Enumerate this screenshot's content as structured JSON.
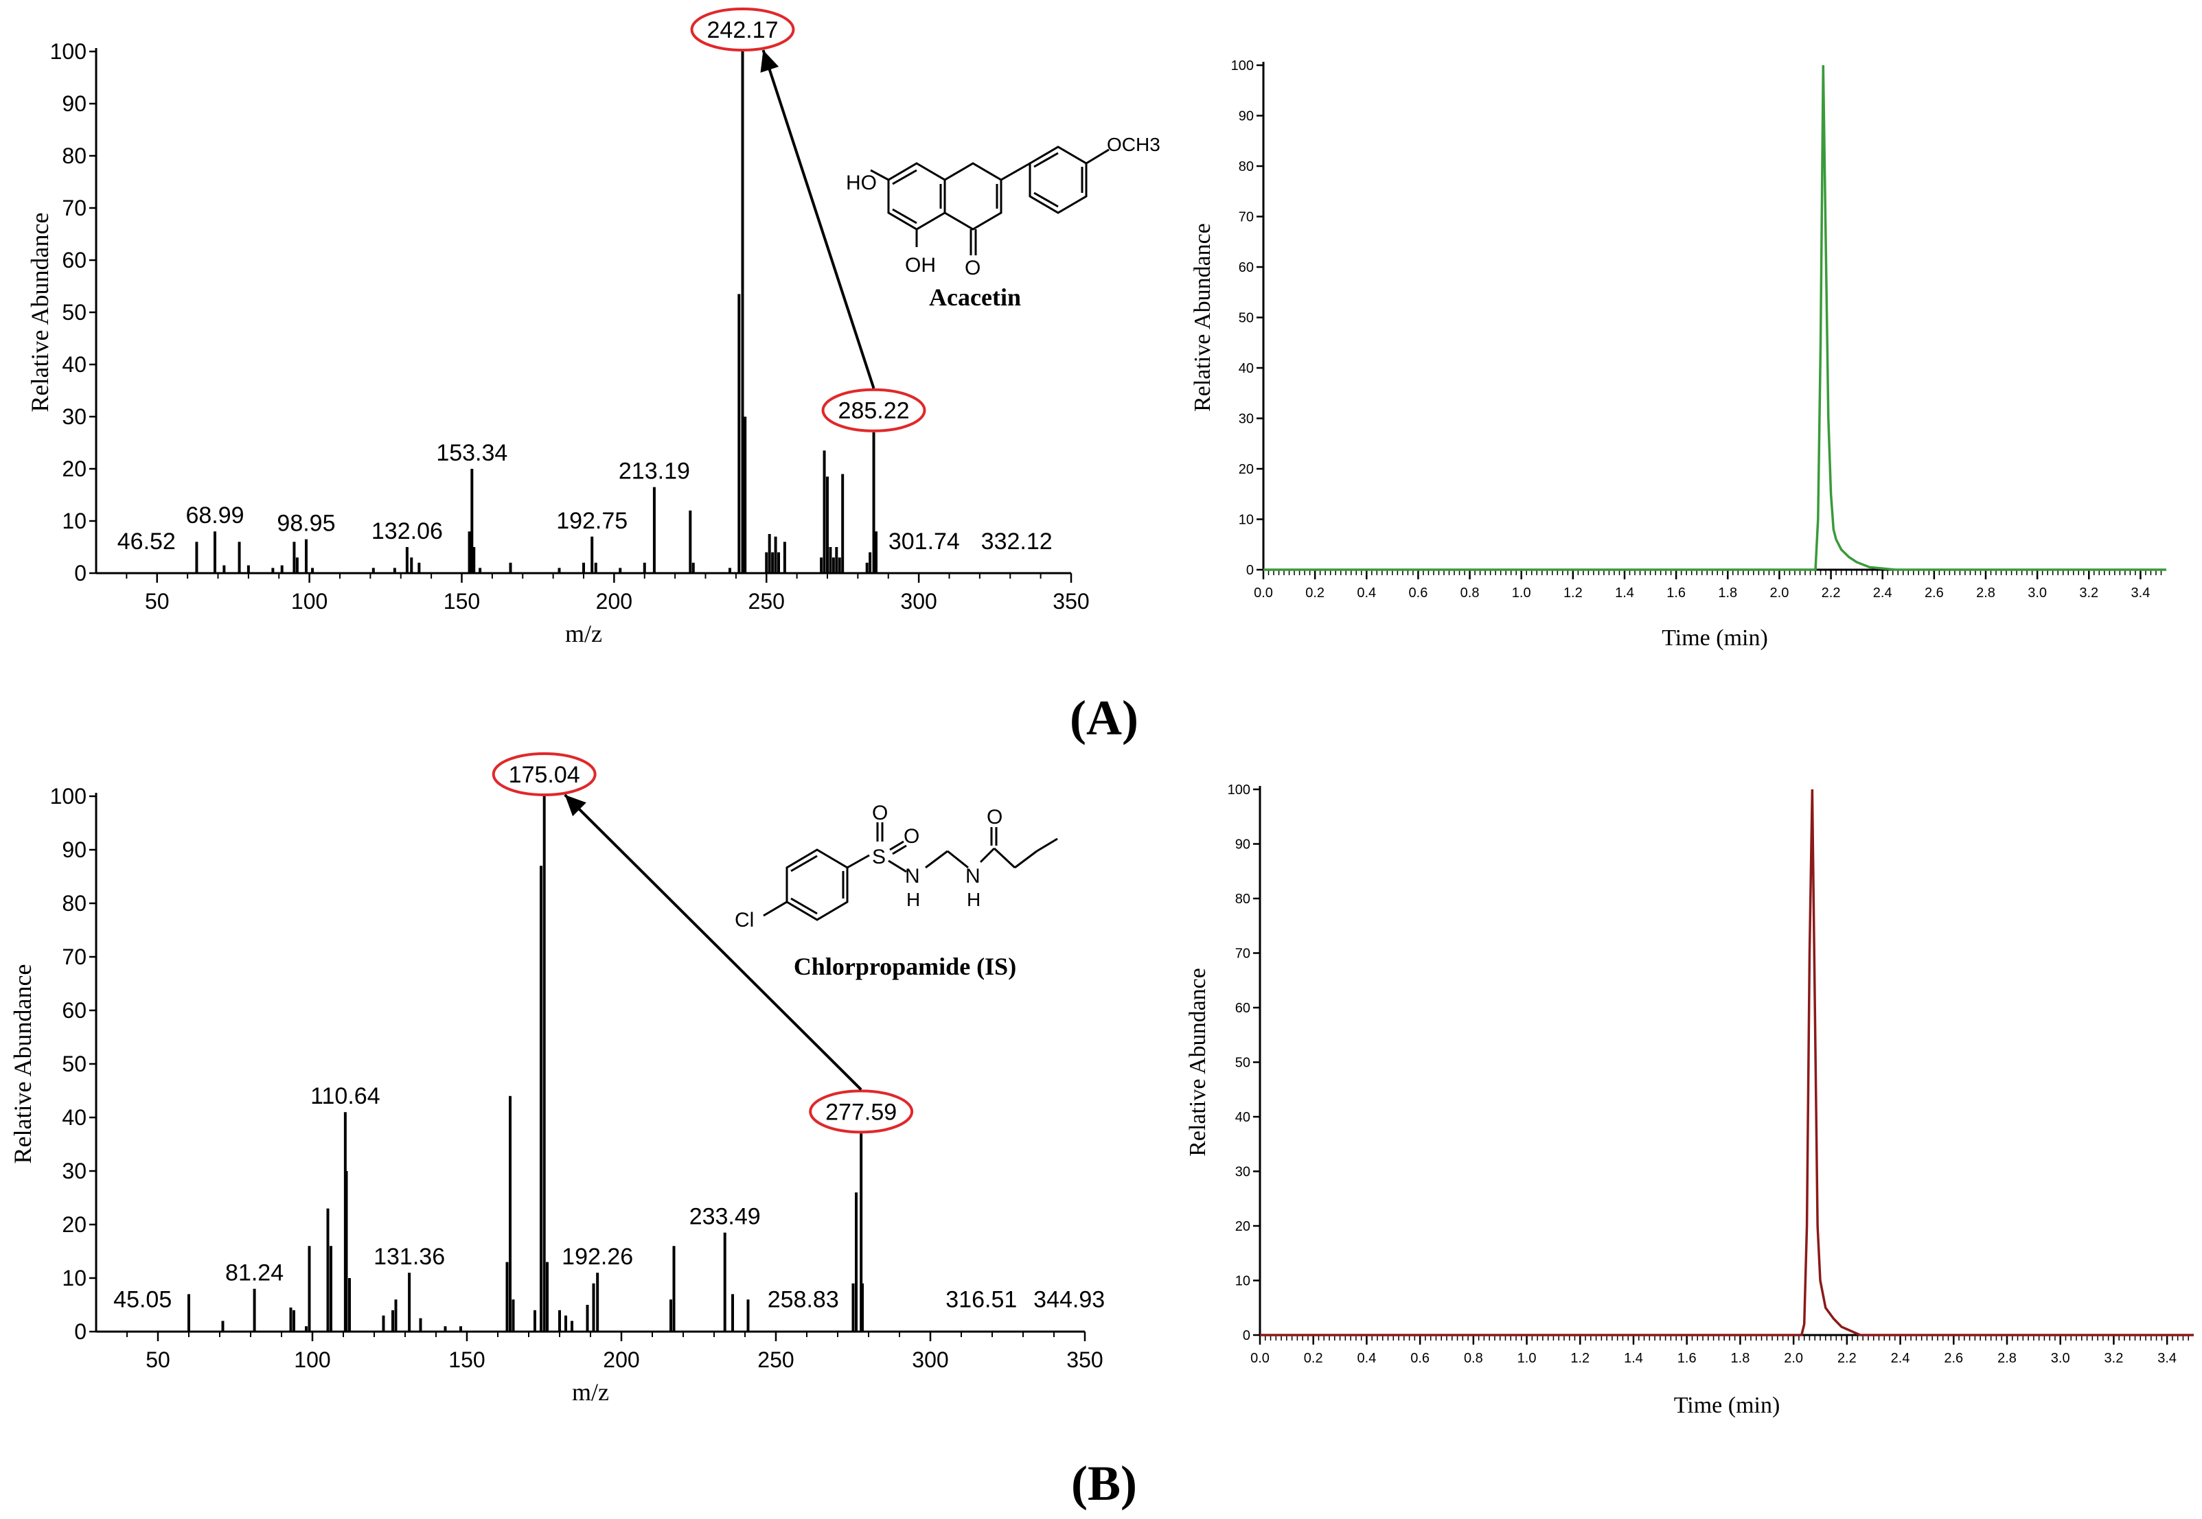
{
  "panel_labels": [
    "(A)",
    "(B)"
  ],
  "compound_names": [
    "Acacetin",
    "Chlorpropamide  (IS)"
  ],
  "structure_text": {
    "acacetin": {
      "ho": "HO",
      "oh": "OH",
      "o": "O",
      "och3": "OCH3"
    },
    "chlorpropamide": {
      "cl": "Cl",
      "s": "S",
      "o1": "O",
      "o2": "O",
      "n1": "N",
      "h1": "H",
      "n2": "N",
      "h2": "H",
      "o3": "O"
    }
  },
  "colors": {
    "spectrum": "#000000",
    "trace_A": "#3a9a3a",
    "trace_B": "#8b1a1a",
    "highlight": "#e0282a"
  },
  "chart_data": [
    {
      "id": "A-spectrum",
      "type": "bar",
      "xlabel": "m/z",
      "ylabel": "Relative Abundance",
      "xlim": [
        30,
        350
      ],
      "ylim": [
        0,
        100
      ],
      "xticks": [
        50,
        100,
        150,
        200,
        250,
        300,
        350
      ],
      "yticks": [
        0,
        10,
        20,
        30,
        40,
        50,
        60,
        70,
        80,
        90,
        100
      ],
      "peaks": [
        {
          "x": 63.0,
          "y": 6
        },
        {
          "x": 68.99,
          "y": 8
        },
        {
          "x": 72.0,
          "y": 1.5
        },
        {
          "x": 77.0,
          "y": 6
        },
        {
          "x": 80.0,
          "y": 1.5
        },
        {
          "x": 88.0,
          "y": 1
        },
        {
          "x": 91.0,
          "y": 1.5
        },
        {
          "x": 95.0,
          "y": 6
        },
        {
          "x": 96.0,
          "y": 3
        },
        {
          "x": 98.95,
          "y": 6.5
        },
        {
          "x": 101.0,
          "y": 1
        },
        {
          "x": 121.0,
          "y": 1
        },
        {
          "x": 128.0,
          "y": 1
        },
        {
          "x": 132.06,
          "y": 5
        },
        {
          "x": 133.5,
          "y": 3
        },
        {
          "x": 136.0,
          "y": 2
        },
        {
          "x": 152.5,
          "y": 8
        },
        {
          "x": 153.34,
          "y": 20
        },
        {
          "x": 154.0,
          "y": 5
        },
        {
          "x": 156.0,
          "y": 1
        },
        {
          "x": 166.0,
          "y": 2
        },
        {
          "x": 182.0,
          "y": 1
        },
        {
          "x": 190.0,
          "y": 2
        },
        {
          "x": 192.75,
          "y": 7
        },
        {
          "x": 194.0,
          "y": 2
        },
        {
          "x": 202.0,
          "y": 1
        },
        {
          "x": 210.0,
          "y": 2
        },
        {
          "x": 213.19,
          "y": 16.5
        },
        {
          "x": 225.0,
          "y": 12
        },
        {
          "x": 226.0,
          "y": 2
        },
        {
          "x": 238.0,
          "y": 1
        },
        {
          "x": 241.0,
          "y": 53.5
        },
        {
          "x": 242.17,
          "y": 100
        },
        {
          "x": 243.0,
          "y": 30
        },
        {
          "x": 250.0,
          "y": 4
        },
        {
          "x": 251.0,
          "y": 7.5
        },
        {
          "x": 252.0,
          "y": 4
        },
        {
          "x": 253.0,
          "y": 7
        },
        {
          "x": 254.0,
          "y": 4
        },
        {
          "x": 256.0,
          "y": 6
        },
        {
          "x": 268.0,
          "y": 3
        },
        {
          "x": 269.0,
          "y": 23.5
        },
        {
          "x": 270.0,
          "y": 18.5
        },
        {
          "x": 271.0,
          "y": 5
        },
        {
          "x": 272.0,
          "y": 3
        },
        {
          "x": 273.0,
          "y": 5
        },
        {
          "x": 274.0,
          "y": 3
        },
        {
          "x": 275.0,
          "y": 19
        },
        {
          "x": 283.0,
          "y": 2
        },
        {
          "x": 284.0,
          "y": 4
        },
        {
          "x": 285.22,
          "y": 27
        },
        {
          "x": 286.0,
          "y": 8
        }
      ],
      "peak_labels": [
        {
          "x": 46.52,
          "y": 3,
          "text": "46.52"
        },
        {
          "x": 68.99,
          "y": 8,
          "text": "68.99"
        },
        {
          "x": 98.95,
          "y": 6.5,
          "text": "98.95"
        },
        {
          "x": 132.06,
          "y": 5,
          "text": "132.06"
        },
        {
          "x": 153.34,
          "y": 20,
          "text": "153.34"
        },
        {
          "x": 192.75,
          "y": 7,
          "text": "192.75"
        },
        {
          "x": 213.19,
          "y": 16.5,
          "text": "213.19"
        },
        {
          "x": 301.74,
          "y": 3,
          "text": "301.74"
        },
        {
          "x": 332.12,
          "y": 3,
          "text": "332.12"
        }
      ],
      "highlighted": [
        {
          "x": 242.17,
          "y": 100,
          "text": "242.17"
        },
        {
          "x": 285.22,
          "y": 27,
          "text": "285.22"
        }
      ],
      "arrow": {
        "from_x": 285.22,
        "from_y": 27,
        "to_x": 242.17,
        "to_y": 100
      }
    },
    {
      "id": "A-chromatogram",
      "type": "line",
      "xlabel": "Time (min)",
      "ylabel": "Relative Abundance",
      "xlim": [
        0,
        3.5
      ],
      "ylim": [
        0,
        100
      ],
      "xticks": [
        "0.0",
        "0.2",
        "0.4",
        "0.6",
        "0.8",
        "1.0",
        "1.2",
        "1.4",
        "1.6",
        "1.8",
        "2.0",
        "2.2",
        "2.4",
        "2.6",
        "2.8",
        "3.0",
        "3.2",
        "3.4"
      ],
      "yticks": [
        0,
        10,
        20,
        30,
        40,
        50,
        60,
        70,
        80,
        90,
        100
      ],
      "series": [
        {
          "color": "#3a9a3a",
          "x": [
            0,
            2.12,
            2.14,
            2.15,
            2.16,
            2.17,
            2.18,
            2.19,
            2.2,
            2.21,
            2.22,
            2.24,
            2.27,
            2.3,
            2.35,
            2.45,
            3.5
          ],
          "y": [
            0,
            0,
            0,
            10,
            45,
            100,
            65,
            30,
            15,
            8,
            6,
            4,
            2.5,
            1.5,
            0.5,
            0,
            0
          ]
        }
      ]
    },
    {
      "id": "B-spectrum",
      "type": "bar",
      "xlabel": "m/z",
      "ylabel": "Relative Abundance",
      "xlim": [
        30,
        350
      ],
      "ylim": [
        0,
        100
      ],
      "xticks": [
        50,
        100,
        150,
        200,
        250,
        300,
        350
      ],
      "yticks": [
        0,
        10,
        20,
        30,
        40,
        50,
        60,
        70,
        80,
        90,
        100
      ],
      "peaks": [
        {
          "x": 60.0,
          "y": 7
        },
        {
          "x": 71.0,
          "y": 2
        },
        {
          "x": 81.24,
          "y": 8
        },
        {
          "x": 93.0,
          "y": 4.5
        },
        {
          "x": 94.0,
          "y": 4
        },
        {
          "x": 98.0,
          "y": 1
        },
        {
          "x": 99.0,
          "y": 16
        },
        {
          "x": 105.0,
          "y": 23
        },
        {
          "x": 106.0,
          "y": 16
        },
        {
          "x": 110.64,
          "y": 41
        },
        {
          "x": 111.0,
          "y": 30
        },
        {
          "x": 112.0,
          "y": 10
        },
        {
          "x": 123.0,
          "y": 3
        },
        {
          "x": 126.0,
          "y": 4
        },
        {
          "x": 127.0,
          "y": 6
        },
        {
          "x": 131.36,
          "y": 11
        },
        {
          "x": 135.0,
          "y": 2.5
        },
        {
          "x": 143.0,
          "y": 1
        },
        {
          "x": 148.0,
          "y": 1
        },
        {
          "x": 163.0,
          "y": 13
        },
        {
          "x": 164.0,
          "y": 44
        },
        {
          "x": 165.0,
          "y": 6
        },
        {
          "x": 172.0,
          "y": 4
        },
        {
          "x": 174.0,
          "y": 87
        },
        {
          "x": 175.04,
          "y": 100
        },
        {
          "x": 176.0,
          "y": 13
        },
        {
          "x": 180.0,
          "y": 4
        },
        {
          "x": 182.0,
          "y": 3
        },
        {
          "x": 184.0,
          "y": 2
        },
        {
          "x": 189.0,
          "y": 5
        },
        {
          "x": 191.0,
          "y": 9
        },
        {
          "x": 192.26,
          "y": 11
        },
        {
          "x": 216.0,
          "y": 6
        },
        {
          "x": 217.0,
          "y": 16
        },
        {
          "x": 233.49,
          "y": 18.5
        },
        {
          "x": 236.0,
          "y": 7
        },
        {
          "x": 241.0,
          "y": 6
        },
        {
          "x": 275.0,
          "y": 9
        },
        {
          "x": 276.0,
          "y": 26
        },
        {
          "x": 277.59,
          "y": 37
        },
        {
          "x": 278.0,
          "y": 9
        }
      ],
      "peak_labels": [
        {
          "x": 45.05,
          "y": 3,
          "text": "45.05"
        },
        {
          "x": 81.24,
          "y": 8,
          "text": "81.24"
        },
        {
          "x": 110.64,
          "y": 41,
          "text": "110.64"
        },
        {
          "x": 131.36,
          "y": 11,
          "text": "131.36"
        },
        {
          "x": 192.26,
          "y": 11,
          "text": "192.26"
        },
        {
          "x": 233.49,
          "y": 18.5,
          "text": "233.49"
        },
        {
          "x": 258.83,
          "y": 3,
          "text": "258.83"
        },
        {
          "x": 316.51,
          "y": 3,
          "text": "316.51"
        },
        {
          "x": 344.93,
          "y": 3,
          "text": "344.93"
        }
      ],
      "highlighted": [
        {
          "x": 175.04,
          "y": 100,
          "text": "175.04"
        },
        {
          "x": 277.59,
          "y": 37,
          "text": "277.59"
        }
      ],
      "arrow": {
        "from_x": 277.59,
        "from_y": 37,
        "to_x": 175.04,
        "to_y": 100
      }
    },
    {
      "id": "B-chromatogram",
      "type": "line",
      "xlabel": "Time (min)",
      "ylabel": "Relative Abundance",
      "xlim": [
        0,
        3.5
      ],
      "ylim": [
        0,
        100
      ],
      "xticks": [
        "0.0",
        "0.2",
        "0.4",
        "0.6",
        "0.8",
        "1.0",
        "1.2",
        "1.4",
        "1.6",
        "1.8",
        "2.0",
        "2.2",
        "2.4",
        "2.6",
        "2.8",
        "3.0",
        "3.2",
        "3.4"
      ],
      "yticks": [
        0,
        10,
        20,
        30,
        40,
        50,
        60,
        70,
        80,
        90,
        100
      ],
      "series": [
        {
          "color": "#8b1a1a",
          "x": [
            0,
            2.03,
            2.04,
            2.05,
            2.06,
            2.07,
            2.08,
            2.09,
            2.1,
            2.12,
            2.15,
            2.18,
            2.25,
            3.5
          ],
          "y": [
            0,
            0,
            2,
            20,
            70,
            100,
            60,
            20,
            10,
            5,
            3,
            1.5,
            0,
            0
          ]
        }
      ]
    }
  ]
}
